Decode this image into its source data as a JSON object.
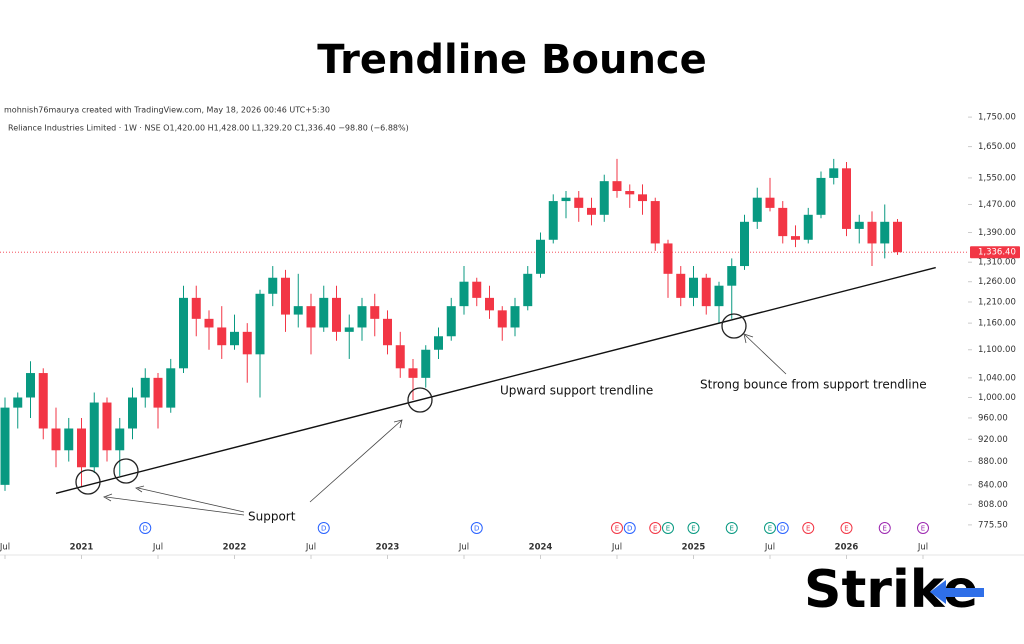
{
  "chart_data": {
    "type": "candlestick",
    "title": "Trendline Bounce",
    "credit": "mohnish76maurya created with TradingView.com, May 18, 2026 00:46 UTC+5:30",
    "subtitle": "Reliance Industries Limited · 1W · NSE   O1,420.00  H1,428.00  L1,329.20  C1,336.40  −98.80 (−6.88%)",
    "x": [
      "2020-07",
      "2020-08",
      "2020-09",
      "2020-10",
      "2020-11",
      "2020-12",
      "2021-01",
      "2021-02",
      "2021-03",
      "2021-04",
      "2021-05",
      "2021-06",
      "2021-07",
      "2021-08",
      "2021-09",
      "2021-10",
      "2021-11",
      "2021-12",
      "2022-01",
      "2022-02",
      "2022-03",
      "2022-04",
      "2022-05",
      "2022-06",
      "2022-07",
      "2022-08",
      "2022-09",
      "2022-10",
      "2022-11",
      "2022-12",
      "2023-01",
      "2023-02",
      "2023-03",
      "2023-04",
      "2023-05",
      "2023-06",
      "2023-07",
      "2023-08",
      "2023-09",
      "2023-10",
      "2023-11",
      "2023-12",
      "2024-01",
      "2024-02",
      "2024-03",
      "2024-04",
      "2024-05",
      "2024-06",
      "2024-07",
      "2024-08",
      "2024-09",
      "2024-10",
      "2024-11",
      "2024-12",
      "2025-01",
      "2025-02",
      "2025-03",
      "2025-04",
      "2025-05",
      "2025-06",
      "2025-07",
      "2025-08",
      "2025-09",
      "2025-10",
      "2025-11",
      "2025-12",
      "2026-01",
      "2026-02",
      "2026-03",
      "2026-04",
      "2026-05"
    ],
    "open": [
      840,
      980,
      1000,
      1050,
      940,
      900,
      940,
      870,
      990,
      900,
      940,
      1000,
      1040,
      980,
      1060,
      1220,
      1170,
      1150,
      1110,
      1140,
      1090,
      1230,
      1270,
      1180,
      1200,
      1150,
      1220,
      1140,
      1150,
      1200,
      1170,
      1110,
      1060,
      1040,
      1100,
      1130,
      1200,
      1260,
      1220,
      1190,
      1150,
      1200,
      1280,
      1370,
      1480,
      1490,
      1460,
      1440,
      1540,
      1510,
      1500,
      1480,
      1360,
      1280,
      1220,
      1270,
      1200,
      1250,
      1300,
      1420,
      1490,
      1460,
      1380,
      1370,
      1440,
      1550,
      1580,
      1400,
      1420,
      1360,
      1420
    ],
    "high": [
      1000,
      1010,
      1075,
      1060,
      980,
      960,
      960,
      1010,
      1000,
      960,
      1020,
      1060,
      1050,
      1080,
      1250,
      1250,
      1190,
      1200,
      1180,
      1160,
      1240,
      1300,
      1290,
      1280,
      1230,
      1250,
      1250,
      1180,
      1220,
      1230,
      1190,
      1140,
      1080,
      1110,
      1150,
      1220,
      1300,
      1270,
      1250,
      1200,
      1220,
      1300,
      1390,
      1500,
      1510,
      1510,
      1490,
      1560,
      1610,
      1530,
      1530,
      1490,
      1370,
      1300,
      1300,
      1280,
      1260,
      1320,
      1440,
      1520,
      1550,
      1480,
      1410,
      1460,
      1570,
      1610,
      1600,
      1440,
      1450,
      1470,
      1428
    ],
    "low": [
      830,
      940,
      960,
      920,
      870,
      880,
      836,
      860,
      880,
      855,
      920,
      980,
      940,
      970,
      1050,
      1130,
      1100,
      1080,
      1100,
      1030,
      1000,
      1200,
      1140,
      1150,
      1090,
      1140,
      1120,
      1080,
      1120,
      1130,
      1090,
      1040,
      995,
      1020,
      1080,
      1120,
      1180,
      1200,
      1170,
      1120,
      1130,
      1190,
      1270,
      1360,
      1430,
      1420,
      1410,
      1420,
      1490,
      1460,
      1440,
      1340,
      1220,
      1200,
      1200,
      1180,
      1160,
      1170,
      1290,
      1400,
      1450,
      1360,
      1350,
      1360,
      1430,
      1530,
      1380,
      1360,
      1300,
      1320,
      1329.2
    ],
    "close": [
      980,
      1000,
      1050,
      940,
      900,
      940,
      870,
      990,
      900,
      940,
      1000,
      1040,
      980,
      1060,
      1220,
      1170,
      1150,
      1110,
      1140,
      1090,
      1230,
      1270,
      1180,
      1200,
      1150,
      1220,
      1140,
      1150,
      1200,
      1170,
      1110,
      1060,
      1040,
      1100,
      1130,
      1200,
      1260,
      1220,
      1190,
      1150,
      1200,
      1280,
      1370,
      1480,
      1490,
      1460,
      1440,
      1540,
      1510,
      1500,
      1480,
      1360,
      1280,
      1220,
      1270,
      1200,
      1250,
      1300,
      1420,
      1490,
      1460,
      1380,
      1370,
      1440,
      1550,
      1580,
      1400,
      1420,
      1360,
      1420,
      1336.4
    ],
    "up_color": "#089981",
    "down_color": "#f23645",
    "log_scale": true,
    "grid": false,
    "ylim": [
      760,
      1800
    ],
    "yticks": [
      {
        "value": 775.5,
        "label": "775.50"
      },
      {
        "value": 808,
        "label": "808.00"
      },
      {
        "value": 840,
        "label": "840.00"
      },
      {
        "value": 880,
        "label": "880.00"
      },
      {
        "value": 920,
        "label": "920.00"
      },
      {
        "value": 960,
        "label": "960.00"
      },
      {
        "value": 1000,
        "label": "1,000.00"
      },
      {
        "value": 1040,
        "label": "1,040.00"
      },
      {
        "value": 1100,
        "label": "1,100.00"
      },
      {
        "value": 1160,
        "label": "1,160.00"
      },
      {
        "value": 1210,
        "label": "1,210.00"
      },
      {
        "value": 1260,
        "label": "1,260.00"
      },
      {
        "value": 1310,
        "label": "1,310.00"
      },
      {
        "value": 1390,
        "label": "1,390.00"
      },
      {
        "value": 1470,
        "label": "1,470.00"
      },
      {
        "value": 1550,
        "label": "1,550.00"
      },
      {
        "value": 1650,
        "label": "1,650.00"
      },
      {
        "value": 1750,
        "label": "1,750.00"
      }
    ],
    "xticks": [
      {
        "value": "2020-07",
        "label": "Jul"
      },
      {
        "value": "2021-01",
        "label": "2021"
      },
      {
        "value": "2021-07",
        "label": "Jul"
      },
      {
        "value": "2022-01",
        "label": "2022"
      },
      {
        "value": "2022-07",
        "label": "Jul"
      },
      {
        "value": "2023-01",
        "label": "2023"
      },
      {
        "value": "2023-07",
        "label": "Jul"
      },
      {
        "value": "2024-01",
        "label": "2024"
      },
      {
        "value": "2024-07",
        "label": "Jul"
      },
      {
        "value": "2025-01",
        "label": "2025"
      },
      {
        "value": "2025-07",
        "label": "Jul"
      },
      {
        "value": "2026-01",
        "label": "2026"
      },
      {
        "value": "2026-07",
        "label": "Jul"
      }
    ],
    "last_price": {
      "value": 1336.4,
      "label": "1,336.40",
      "color": "#f23645"
    },
    "trendline": {
      "x": [
        "2020-11",
        "2026-08"
      ],
      "values": [
        826,
        1296
      ]
    },
    "annotations": [
      "Upward support trendline",
      "Strong bounce from support trendline",
      "Support"
    ],
    "events": [
      {
        "x": "2021-06",
        "label": "D",
        "color": "#2962ff"
      },
      {
        "x": "2022-08",
        "label": "D",
        "color": "#2962ff"
      },
      {
        "x": "2023-08",
        "label": "D",
        "color": "#2962ff"
      },
      {
        "x": "2024-07",
        "label": "E",
        "color": "#f23645"
      },
      {
        "x": "2024-08",
        "label": "D",
        "color": "#2962ff"
      },
      {
        "x": "2024-10",
        "label": "E",
        "color": "#f23645"
      },
      {
        "x": "2024-11",
        "label": "E",
        "color": "#089981"
      },
      {
        "x": "2025-01",
        "label": "E",
        "color": "#089981"
      },
      {
        "x": "2025-04",
        "label": "E",
        "color": "#089981"
      },
      {
        "x": "2025-07",
        "label": "E",
        "color": "#089981"
      },
      {
        "x": "2025-08",
        "label": "D",
        "color": "#2962ff"
      },
      {
        "x": "2025-10",
        "label": "E",
        "color": "#f23645"
      },
      {
        "x": "2026-01",
        "label": "E",
        "color": "#f23645"
      },
      {
        "x": "2026-04",
        "label": "E",
        "color": "#9c27b0"
      },
      {
        "x": "2026-07",
        "label": "E",
        "color": "#9c27b0"
      }
    ],
    "logo": "Strike"
  }
}
